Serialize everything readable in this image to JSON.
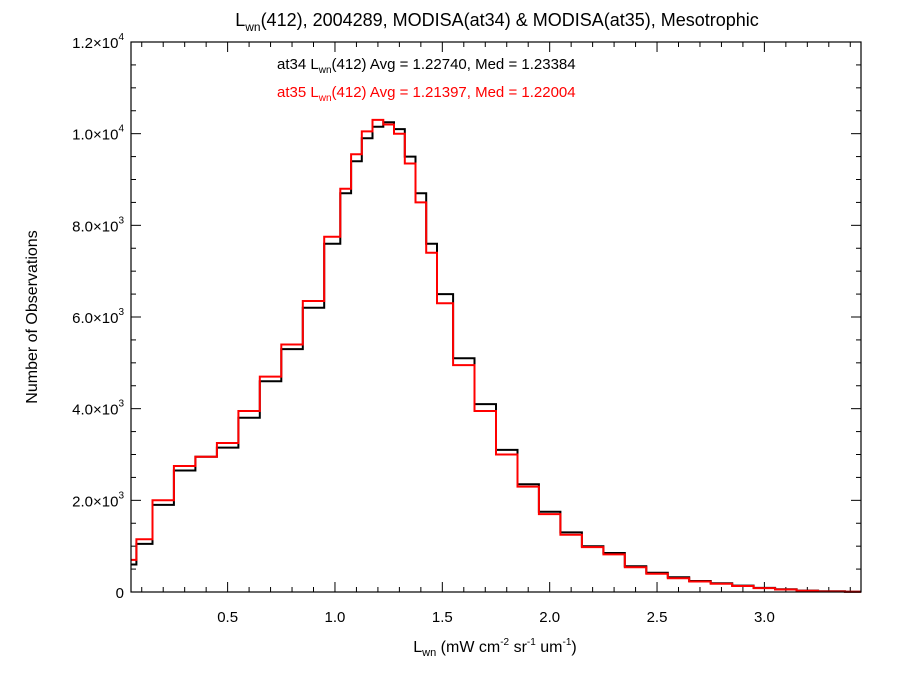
{
  "chart_data": {
    "type": "line",
    "title": {
      "main": "L",
      "sub": "wn",
      "rest": "(412), 2004289, MODISA(at34) & MODISA(at35), Mesotrophic"
    },
    "xlabel": {
      "main": "L",
      "sub": "wn",
      "rest1": " (mW cm",
      "sup1": "-2",
      "rest2": " sr",
      "sup2": "-1",
      "rest3": " um",
      "sup3": "-1",
      "rest4": ")"
    },
    "ylabel": "Number of Observations",
    "xlim": [
      0.05,
      3.45
    ],
    "ylim": [
      0,
      12000
    ],
    "xticks": [
      {
        "value": 0.5,
        "label": "0.5"
      },
      {
        "value": 1.0,
        "label": "1.0"
      },
      {
        "value": 1.5,
        "label": "1.5"
      },
      {
        "value": 2.0,
        "label": "2.0"
      },
      {
        "value": 2.5,
        "label": "2.5"
      },
      {
        "value": 3.0,
        "label": "3.0"
      }
    ],
    "yticks": [
      {
        "value": 0,
        "mant": "0",
        "exp": ""
      },
      {
        "value": 2000,
        "mant": "2.0×10",
        "exp": "3"
      },
      {
        "value": 4000,
        "mant": "4.0×10",
        "exp": "3"
      },
      {
        "value": 6000,
        "mant": "6.0×10",
        "exp": "3"
      },
      {
        "value": 8000,
        "mant": "8.0×10",
        "exp": "3"
      },
      {
        "value": 10000,
        "mant": "1.0×10",
        "exp": "4"
      },
      {
        "value": 12000,
        "mant": "1.2×10",
        "exp": "4"
      }
    ],
    "annotations": [
      {
        "pre": "at34 L",
        "sub": "wn",
        "post": "(412) Avg = 1.22740, Med = 1.23384",
        "color": "#000000"
      },
      {
        "pre": "at35 L",
        "sub": "wn",
        "post": "(412) Avg = 1.21397, Med = 1.22004",
        "color": "#ff0000"
      }
    ],
    "series": [
      {
        "name": "at34",
        "color": "#000000",
        "x": [
          0.05,
          0.1,
          0.2,
          0.3,
          0.4,
          0.5,
          0.6,
          0.7,
          0.8,
          0.9,
          1.0,
          1.05,
          1.1,
          1.15,
          1.2,
          1.25,
          1.3,
          1.35,
          1.4,
          1.45,
          1.5,
          1.6,
          1.7,
          1.8,
          1.9,
          2.0,
          2.1,
          2.2,
          2.3,
          2.4,
          2.5,
          2.6,
          2.7,
          2.8,
          2.9,
          3.0,
          3.1,
          3.2,
          3.3,
          3.45
        ],
        "y": [
          600,
          1050,
          1900,
          2650,
          2950,
          3150,
          3800,
          4600,
          5300,
          6200,
          7600,
          8700,
          9400,
          9900,
          10150,
          10250,
          10100,
          9500,
          8700,
          7600,
          6500,
          5100,
          4100,
          3100,
          2350,
          1750,
          1300,
          1000,
          850,
          560,
          420,
          320,
          240,
          190,
          140,
          90,
          60,
          30,
          15,
          5
        ]
      },
      {
        "name": "at35",
        "color": "#ff0000",
        "x": [
          0.05,
          0.1,
          0.2,
          0.3,
          0.4,
          0.5,
          0.6,
          0.7,
          0.8,
          0.9,
          1.0,
          1.05,
          1.1,
          1.15,
          1.2,
          1.25,
          1.3,
          1.35,
          1.4,
          1.45,
          1.5,
          1.6,
          1.7,
          1.8,
          1.9,
          2.0,
          2.1,
          2.2,
          2.3,
          2.4,
          2.5,
          2.6,
          2.7,
          2.8,
          2.9,
          3.0,
          3.1,
          3.2,
          3.3,
          3.45
        ],
        "y": [
          700,
          1150,
          2000,
          2750,
          2950,
          3250,
          3950,
          4700,
          5400,
          6350,
          7750,
          8800,
          9550,
          10050,
          10300,
          10200,
          10000,
          9350,
          8500,
          7400,
          6300,
          4950,
          3950,
          3000,
          2300,
          1700,
          1250,
          980,
          820,
          540,
          400,
          300,
          230,
          180,
          130,
          85,
          55,
          28,
          12,
          4
        ]
      }
    ]
  }
}
